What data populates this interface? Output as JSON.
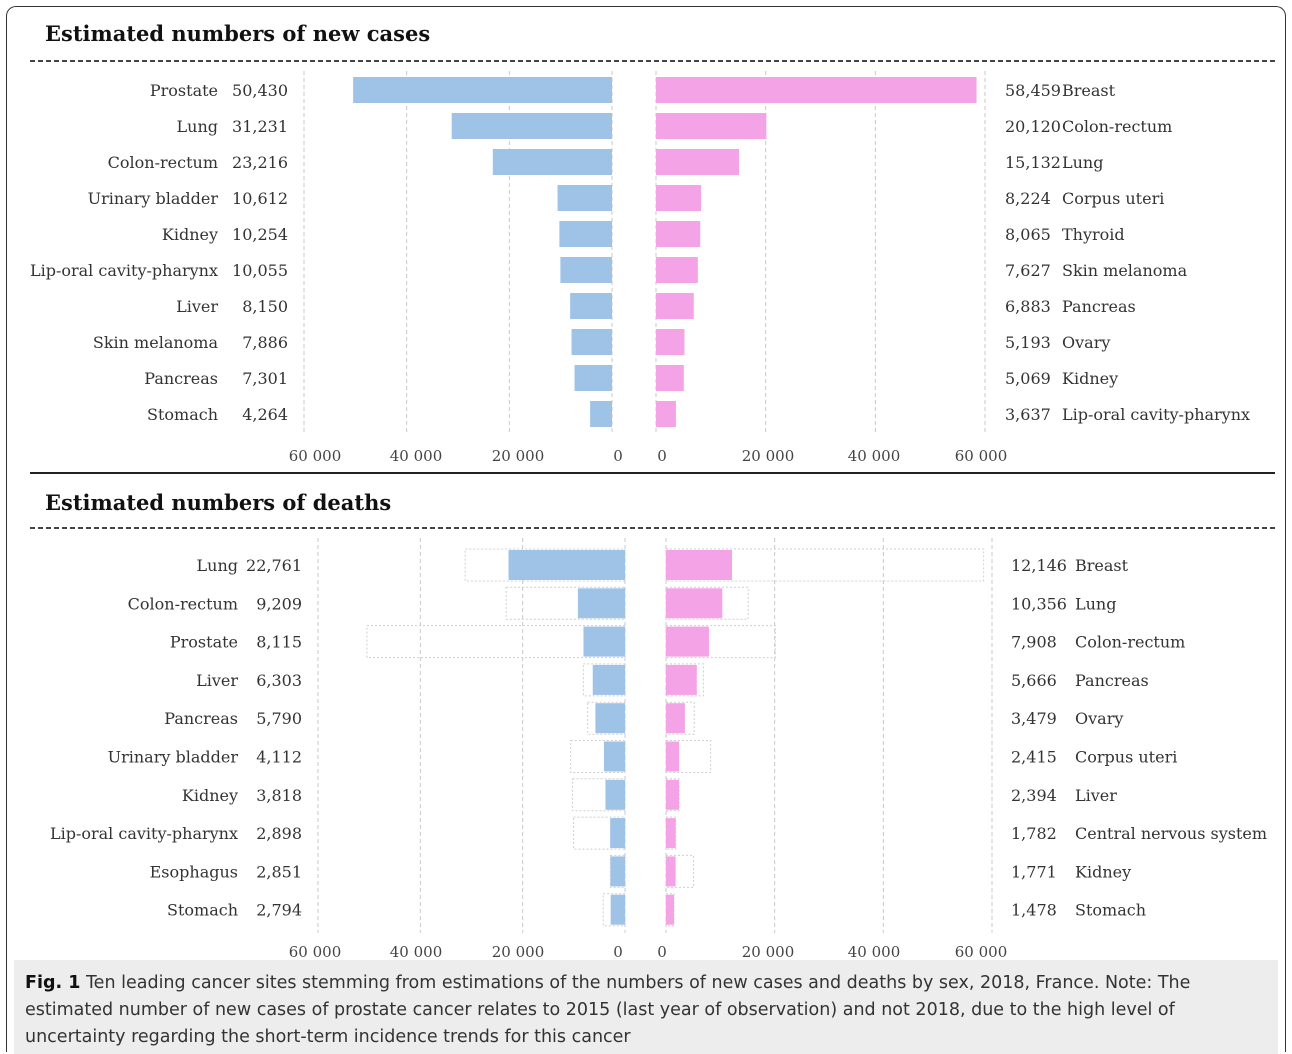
{
  "colors": {
    "male": "#9fc2e7",
    "female": "#f4a3e6",
    "ghost_border": "#cfcfcf",
    "grid": "#c8c8c8"
  },
  "caption": {
    "label": "Fig. 1",
    "text": " Ten leading cancer sites stemming from estimations of the numbers of new cases and deaths by sex, 2018, France. Note: The estimated number of new cases of prostate cancer relates to 2015 (last year of observation) and not 2018, due to the high level of uncertainty regarding the short-term incidence trends for this cancer"
  },
  "chart_data": [
    {
      "type": "bar",
      "title": "Estimated numbers of new cases",
      "xlim": [
        0,
        60000
      ],
      "tick_labels": [
        "60 000",
        "40 000",
        "20 000",
        "0",
        "0",
        "20 000",
        "40 000",
        "60 000"
      ],
      "series": [
        {
          "side": "left",
          "categories": [
            "Prostate",
            "Lung",
            "Colon-rectum",
            "Urinary bladder",
            "Kidney",
            "Lip-oral cavity-pharynx",
            "Liver",
            "Skin melanoma",
            "Pancreas",
            "Stomach"
          ],
          "labels": [
            "50,430",
            "31,231",
            "23,216",
            "10,612",
            "10,254",
            "10,055",
            "8,150",
            "7,886",
            "7,301",
            "4,264"
          ],
          "values": [
            50430,
            31231,
            23216,
            10612,
            10254,
            10055,
            8150,
            7886,
            7301,
            4264
          ]
        },
        {
          "side": "right",
          "categories": [
            "Breast",
            "Colon-rectum",
            "Lung",
            "Corpus uteri",
            "Thyroid",
            "Skin melanoma",
            "Pancreas",
            "Ovary",
            "Kidney",
            "Lip-oral cavity-pharynx"
          ],
          "labels": [
            "58,459",
            "20,120",
            "15,132",
            "8,224",
            "8,065",
            "7,627",
            "6,883",
            "5,193",
            "5,069",
            "3,637"
          ],
          "values": [
            58459,
            20120,
            15132,
            8224,
            8065,
            7627,
            6883,
            5193,
            5069,
            3637
          ]
        }
      ]
    },
    {
      "type": "bar",
      "title": "Estimated numbers of deaths",
      "xlim": [
        0,
        60000
      ],
      "tick_labels": [
        "60 000",
        "40 000",
        "20 000",
        "0",
        "0",
        "20 000",
        "40 000",
        "60 000"
      ],
      "series": [
        {
          "side": "left",
          "categories": [
            "Lung",
            "Colon-rectum",
            "Prostate",
            "Liver",
            "Pancreas",
            "Urinary bladder",
            "Kidney",
            "Lip-oral cavity-pharynx",
            "Esophagus",
            "Stomach"
          ],
          "labels": [
            "22,761",
            "9,209",
            "8,115",
            "6,303",
            "5,790",
            "4,112",
            "3,818",
            "2,898",
            "2,851",
            "2,794"
          ],
          "values": [
            22761,
            9209,
            8115,
            6303,
            5790,
            4112,
            3818,
            2898,
            2851,
            2794
          ],
          "ghost_values": [
            31231,
            23216,
            50430,
            8150,
            7301,
            10612,
            10254,
            10055,
            2851,
            4264
          ]
        },
        {
          "side": "right",
          "categories": [
            "Breast",
            "Lung",
            "Colon-rectum",
            "Pancreas",
            "Ovary",
            "Corpus uteri",
            "Liver",
            "Central nervous system",
            "Kidney",
            "Stomach"
          ],
          "labels": [
            "12,146",
            "10,356",
            "7,908",
            "5,666",
            "3,479",
            "2,415",
            "2,394",
            "1,782",
            "1,771",
            "1,478"
          ],
          "values": [
            12146,
            10356,
            7908,
            5666,
            3479,
            2415,
            2394,
            1782,
            1771,
            1478
          ],
          "ghost_values": [
            58459,
            15132,
            20120,
            6883,
            5193,
            8224,
            2394,
            1782,
            5069,
            1478
          ]
        }
      ]
    }
  ]
}
